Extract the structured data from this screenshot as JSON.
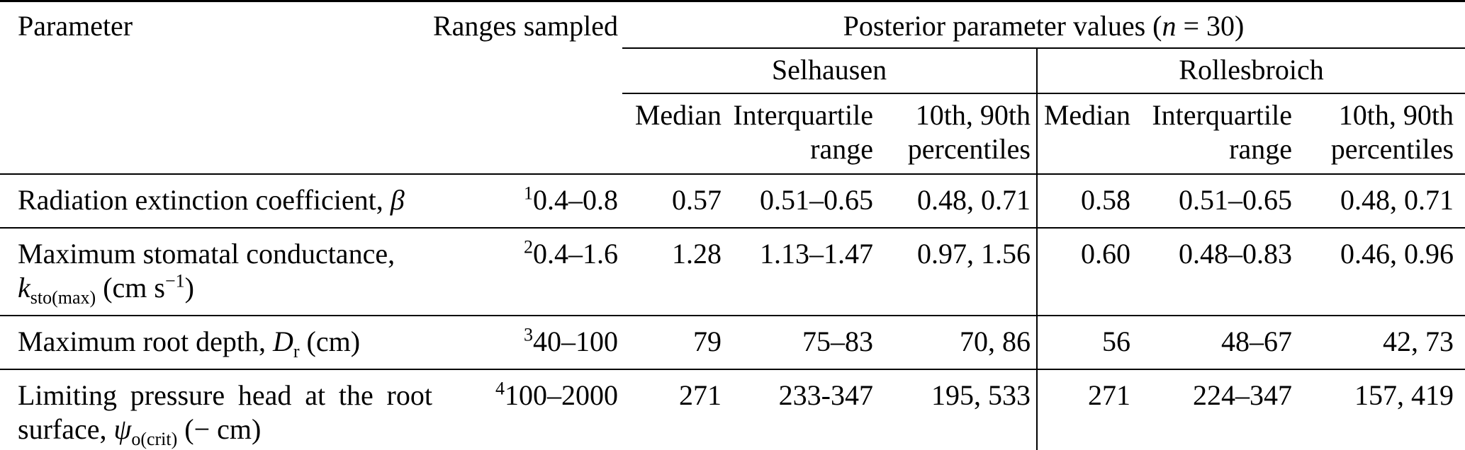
{
  "colors": {
    "background": "#ffffff",
    "text": "#000000",
    "rules": "#000000"
  },
  "table": {
    "header": {
      "parameter": "Parameter",
      "ranges_sampled": "Ranges sampled",
      "posterior_rich": [
        {
          "t": "Posterior parameter values ("
        },
        {
          "i": "n"
        },
        {
          "t": " = 30)"
        }
      ],
      "site_left": "Selhausen",
      "site_right": "Rollesbroich",
      "sub_median": "Median",
      "sub_iqr": "Interquartile range",
      "sub_pct": "10th, 90th percentiles"
    },
    "rows": [
      {
        "param_rich": [
          {
            "t": "Radiation extinction coefficient, "
          },
          {
            "i": "β"
          }
        ],
        "range_rich": [
          {
            "sup": "1"
          },
          {
            "t": "0.4–0.8"
          }
        ],
        "sel": {
          "median": "0.57",
          "iqr": "0.51–0.65",
          "pct": "0.48, 0.71"
        },
        "rol": {
          "median": "0.58",
          "iqr": "0.51–0.65",
          "pct": "0.48, 0.71"
        }
      },
      {
        "param_rich": [
          {
            "t": "Maximum stomatal conductance,"
          },
          {
            "br": true
          },
          {
            "i": "k"
          },
          {
            "sub": "sto(max)"
          },
          {
            "t": " (cm s"
          },
          {
            "sup": "−1"
          },
          {
            "t": ")"
          }
        ],
        "range_rich": [
          {
            "sup": "2"
          },
          {
            "t": "0.4–1.6"
          }
        ],
        "sel": {
          "median": "1.28",
          "iqr": "1.13–1.47",
          "pct": "0.97, 1.56"
        },
        "rol": {
          "median": "0.60",
          "iqr": "0.48–0.83",
          "pct": "0.46, 0.96"
        }
      },
      {
        "param_rich": [
          {
            "t": "Maximum root depth, "
          },
          {
            "i": "D"
          },
          {
            "sub": "r"
          },
          {
            "t": " (cm)"
          }
        ],
        "range_rich": [
          {
            "sup": "3"
          },
          {
            "t": "40–100"
          }
        ],
        "sel": {
          "median": "79",
          "iqr": "75–83",
          "pct": "70, 86"
        },
        "rol": {
          "median": "56",
          "iqr": "48–67",
          "pct": "42, 73"
        }
      },
      {
        "param_rich": [
          {
            "t": "Limiting pressure head at the root surface, "
          },
          {
            "i": "ψ"
          },
          {
            "sub": "o(crit)"
          },
          {
            "t": " (− cm)"
          }
        ],
        "range_rich": [
          {
            "sup": "4"
          },
          {
            "t": "100–2000"
          }
        ],
        "sel": {
          "median": "271",
          "iqr": "233-347",
          "pct": "195, 533"
        },
        "rol": {
          "median": "271",
          "iqr": "224–347",
          "pct": "157, 419"
        }
      }
    ]
  }
}
